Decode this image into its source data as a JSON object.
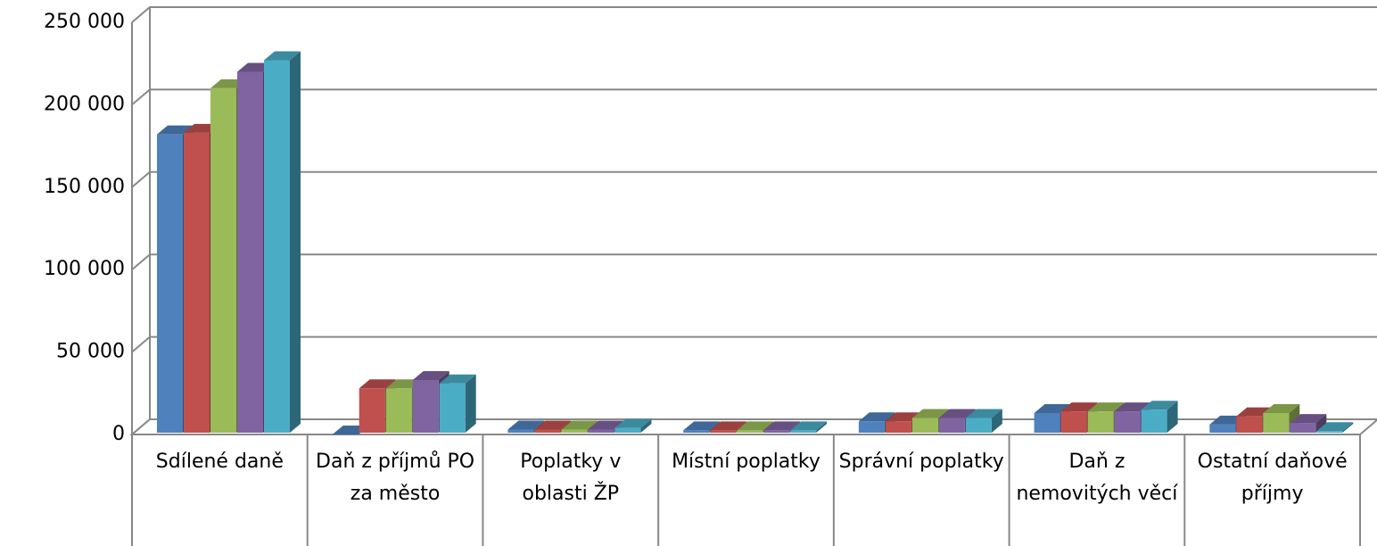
{
  "chart_data": {
    "type": "bar3d",
    "categories": [
      "Sdílené daně",
      "Daň z příjmů PO za město",
      "Poplatky v oblasti ŽP",
      "Místní poplatky",
      "Správní poplatky",
      "Daň z nemovitých věcí",
      "Ostatní daňové příjmy"
    ],
    "series": [
      {
        "color": "#4f81bd",
        "values": [
          182000,
          0,
          3000,
          2500,
          8000,
          13000,
          6000
        ]
      },
      {
        "color": "#c0504d",
        "values": [
          183000,
          28000,
          3000,
          2500,
          8000,
          14000,
          11000
        ]
      },
      {
        "color": "#9bbb59",
        "values": [
          210000,
          28000,
          3000,
          2500,
          10000,
          14000,
          13000
        ]
      },
      {
        "color": "#8064a2",
        "values": [
          220000,
          33000,
          3000,
          2500,
          10000,
          14000,
          7000
        ]
      },
      {
        "color": "#4bacc6",
        "values": [
          227000,
          31000,
          4000,
          2500,
          10000,
          15000,
          2000
        ]
      }
    ],
    "ylim": [
      0,
      250000
    ],
    "yticks": [
      {
        "value": 0,
        "label": "0"
      },
      {
        "value": 50000,
        "label": "50 000"
      },
      {
        "value": 100000,
        "label": "100 000"
      },
      {
        "value": 150000,
        "label": "150 000"
      },
      {
        "value": 200000,
        "label": "200 000"
      },
      {
        "value": 250000,
        "label": "250 000"
      }
    ],
    "grid": true
  }
}
